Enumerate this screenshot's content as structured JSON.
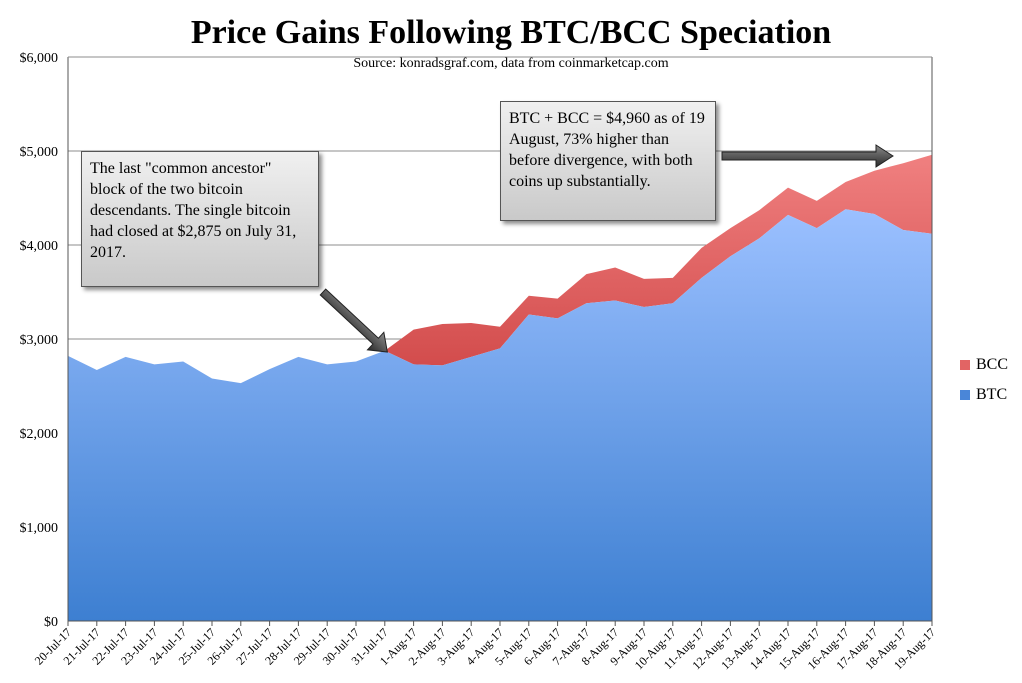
{
  "chart_data": {
    "type": "area",
    "stacked": true,
    "title": "Price Gains Following BTC/BCC Speciation",
    "subtitle": "Source: konradsgraf.com, data from coinmarketcap.com",
    "categories": [
      "20-Jul-17",
      "21-Jul-17",
      "22-Jul-17",
      "23-Jul-17",
      "24-Jul-17",
      "25-Jul-17",
      "26-Jul-17",
      "27-Jul-17",
      "28-Jul-17",
      "29-Jul-17",
      "30-Jul-17",
      "31-Jul-17",
      "1-Aug-17",
      "2-Aug-17",
      "3-Aug-17",
      "4-Aug-17",
      "5-Aug-17",
      "6-Aug-17",
      "7-Aug-17",
      "8-Aug-17",
      "9-Aug-17",
      "10-Aug-17",
      "11-Aug-17",
      "12-Aug-17",
      "13-Aug-17",
      "14-Aug-17",
      "15-Aug-17",
      "16-Aug-17",
      "17-Aug-17",
      "18-Aug-17",
      "19-Aug-17"
    ],
    "series": [
      {
        "name": "BTC",
        "color": "#8fb4f5",
        "values": [
          2820,
          2670,
          2810,
          2730,
          2760,
          2580,
          2530,
          2680,
          2810,
          2730,
          2760,
          2875,
          2730,
          2720,
          2810,
          2900,
          3260,
          3220,
          3380,
          3410,
          3340,
          3380,
          3650,
          3880,
          4070,
          4320,
          4180,
          4380,
          4330,
          4160,
          4120
        ]
      },
      {
        "name": "BCC",
        "color": "#e26464",
        "values": [
          0,
          0,
          0,
          0,
          0,
          0,
          0,
          0,
          0,
          0,
          0,
          0,
          370,
          440,
          360,
          230,
          200,
          210,
          310,
          350,
          300,
          270,
          320,
          300,
          300,
          290,
          290,
          290,
          460,
          710,
          840
        ]
      }
    ],
    "ylim": [
      0,
      6000
    ],
    "yticks": [
      "$0",
      "$1,000",
      "$2,000",
      "$3,000",
      "$4,000",
      "$5,000",
      "$6,000"
    ],
    "grid": true,
    "legend_position": "right",
    "annotations": [
      {
        "id": "callout1",
        "text": "The last \"common ancestor\" block of the two bitcoin descendants. The single bitcoin had closed at $2,875 on July 31, 2017."
      },
      {
        "id": "callout2",
        "text": "BTC + BCC = $4,960 as of 19 August, 73% higher than before divergence, with both coins up substantially."
      }
    ]
  }
}
